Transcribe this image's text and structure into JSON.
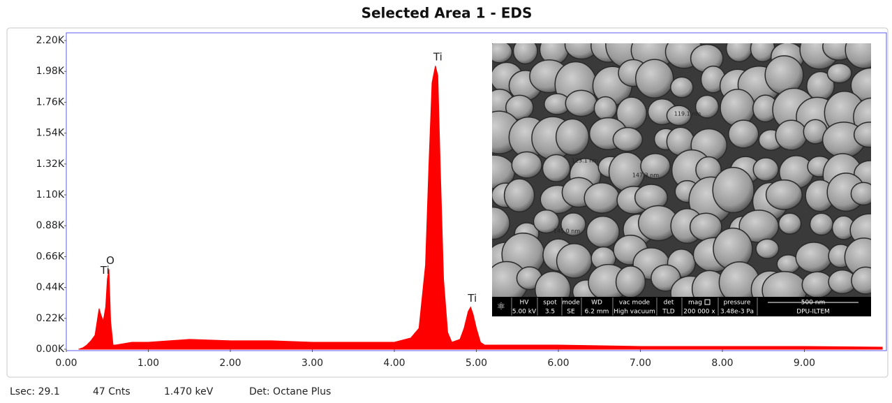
{
  "chart_data": {
    "type": "area",
    "title": "Selected Area 1 - EDS",
    "color": "#ff0000",
    "x": [
      0.15,
      0.2,
      0.25,
      0.3,
      0.35,
      0.4,
      0.42,
      0.45,
      0.48,
      0.5,
      0.52,
      0.54,
      0.57,
      0.6,
      0.7,
      0.8,
      1.0,
      1.5,
      2.0,
      2.5,
      3.0,
      3.5,
      4.0,
      4.2,
      4.3,
      4.38,
      4.42,
      4.46,
      4.5,
      4.53,
      4.56,
      4.6,
      4.65,
      4.7,
      4.8,
      4.85,
      4.9,
      4.93,
      4.96,
      5.0,
      5.05,
      5.1,
      5.3,
      6.0,
      7.0,
      8.0,
      9.0,
      9.95
    ],
    "values": [
      0,
      0.01,
      0.03,
      0.06,
      0.1,
      0.29,
      0.25,
      0.2,
      0.3,
      0.5,
      0.57,
      0.2,
      0.03,
      0.03,
      0.04,
      0.05,
      0.05,
      0.07,
      0.06,
      0.06,
      0.05,
      0.05,
      0.05,
      0.08,
      0.15,
      0.6,
      1.3,
      1.9,
      2.02,
      1.95,
      1.3,
      0.5,
      0.12,
      0.05,
      0.07,
      0.15,
      0.27,
      0.3,
      0.25,
      0.15,
      0.05,
      0.03,
      0.03,
      0.03,
      0.02,
      0.02,
      0.02,
      0.015
    ],
    "xlim": [
      0,
      10
    ],
    "xticks": [
      {
        "value": 0,
        "label": "0.00"
      },
      {
        "value": 1,
        "label": "1.00"
      },
      {
        "value": 2,
        "label": "2.00"
      },
      {
        "value": 3,
        "label": "3.00"
      },
      {
        "value": 4,
        "label": "4.00"
      },
      {
        "value": 5,
        "label": "5.00"
      },
      {
        "value": 6,
        "label": "6.00"
      },
      {
        "value": 7,
        "label": "7.00"
      },
      {
        "value": 8,
        "label": "8.00"
      },
      {
        "value": 9,
        "label": "9.00"
      }
    ],
    "ylim": [
      0,
      2.2
    ],
    "yticks": [
      {
        "value": 0,
        "label": "0.00K"
      },
      {
        "value": 0.22,
        "label": "0.22K"
      },
      {
        "value": 0.44,
        "label": "0.44K"
      },
      {
        "value": 0.66,
        "label": "0.66K"
      },
      {
        "value": 0.88,
        "label": "0.88K"
      },
      {
        "value": 1.1,
        "label": "1.10K"
      },
      {
        "value": 1.32,
        "label": "1.32K"
      },
      {
        "value": 1.54,
        "label": "1.54K"
      },
      {
        "value": 1.76,
        "label": "1.76K"
      },
      {
        "value": 1.98,
        "label": "1.98K"
      },
      {
        "value": 2.2,
        "label": "2.20K"
      }
    ],
    "annotations": [
      {
        "text": "Ti",
        "x": 0.45
      },
      {
        "text": "O",
        "x": 0.52
      },
      {
        "text": "Ti",
        "x": 4.51
      },
      {
        "text": "Ti",
        "x": 4.93
      }
    ]
  },
  "footer": [
    "Lsec: 29.1",
    "47 Cnts",
    "1.470 keV",
    "Det: Octane Plus"
  ],
  "inset": {
    "databar": {
      "labels": [
        "HV",
        "spot",
        "mode",
        "WD",
        "vac mode",
        "det",
        "mag",
        "pressure",
        "500 nm"
      ],
      "values": [
        "5.00 kV",
        "3.5",
        "SE",
        "6.2 mm",
        "High vacuum",
        "TLD",
        "200 000 x",
        "3.48e-3 Pa",
        "DPU-ILTEM"
      ]
    },
    "measurements": [
      "119.1 nm",
      "123.1 nm",
      "147.3 nm",
      "145.0 nm"
    ]
  }
}
